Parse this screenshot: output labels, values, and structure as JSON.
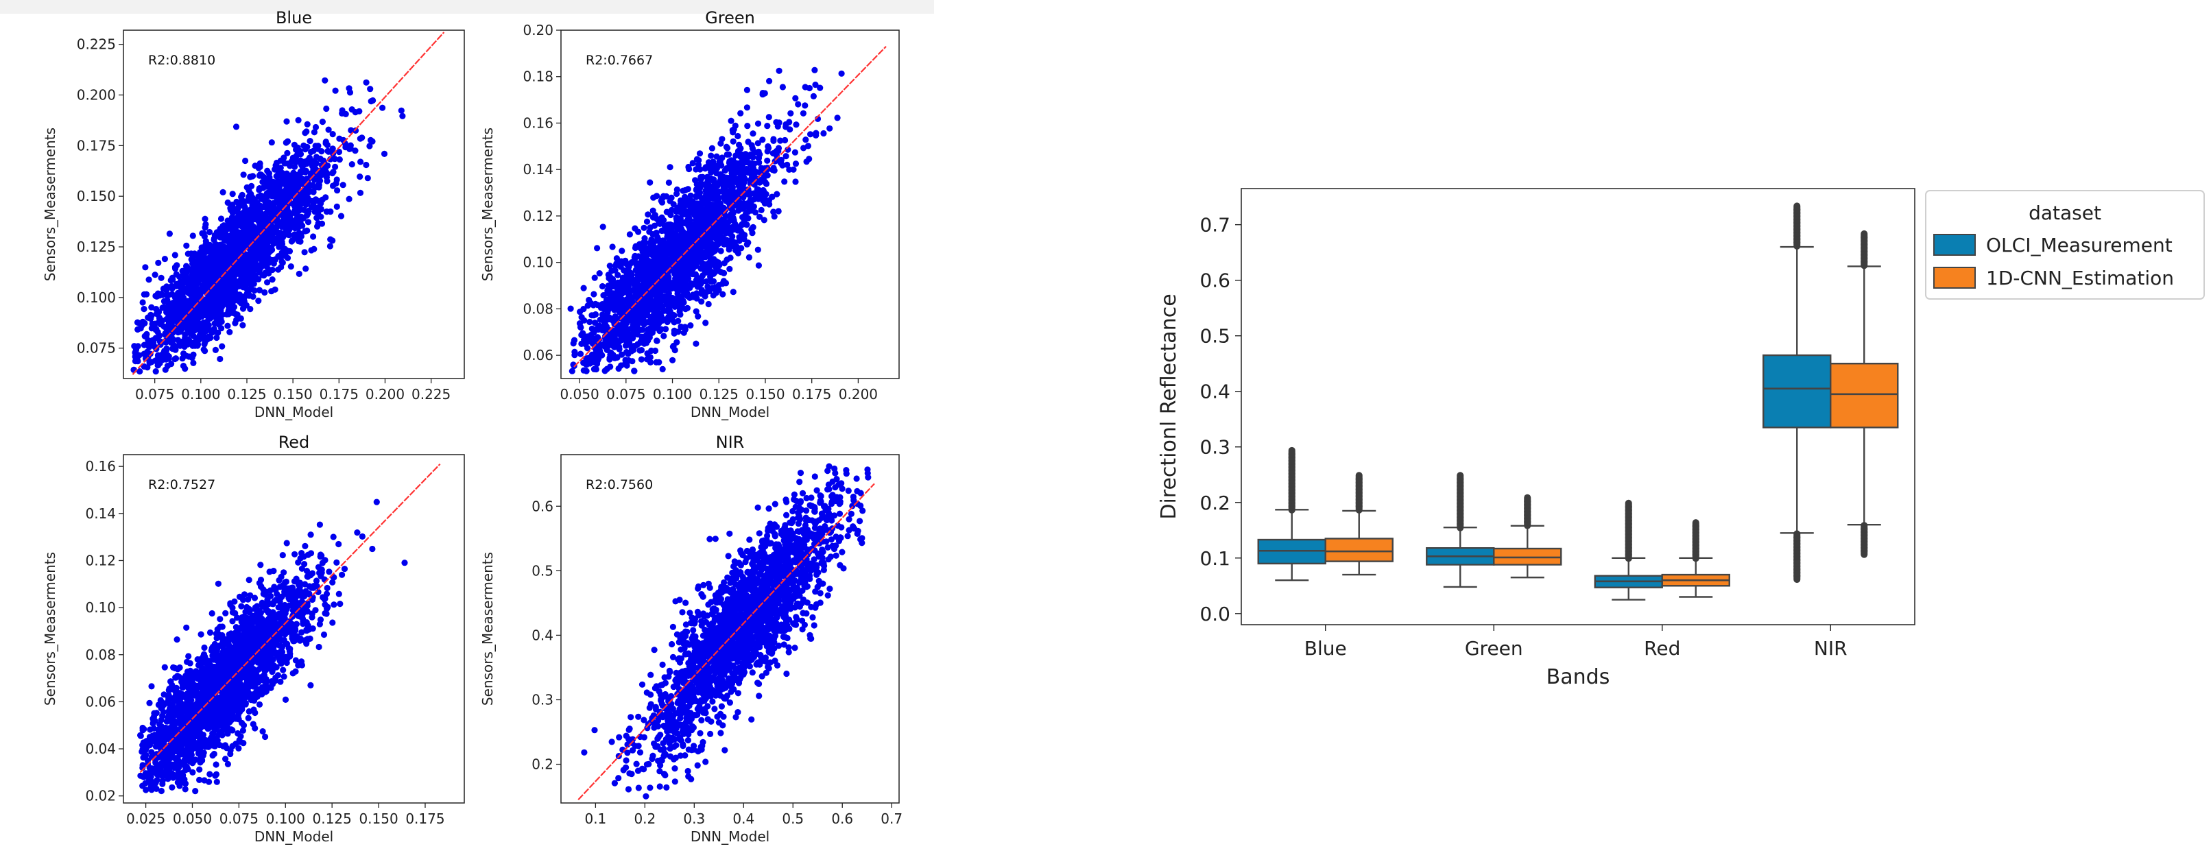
{
  "chart_data": [
    {
      "type": "scatter",
      "title": "Blue",
      "xlabel": "DNN_Model",
      "ylabel": "Sensors_Measerments",
      "annotation": "R2:0.8810",
      "xlim": [
        0.058,
        0.243
      ],
      "ylim": [
        0.06,
        0.232
      ],
      "xticks": [
        0.075,
        0.1,
        0.125,
        0.15,
        0.175,
        0.2,
        0.225
      ],
      "xtick_labels": [
        "0.075",
        "0.100",
        "0.125",
        "0.150",
        "0.175",
        "0.200",
        "0.225"
      ],
      "yticks": [
        0.075,
        0.1,
        0.125,
        0.15,
        0.175,
        0.2,
        0.225
      ],
      "ytick_labels": [
        "0.075",
        "0.100",
        "0.125",
        "0.150",
        "0.175",
        "0.200",
        "0.225"
      ],
      "fit_line": [
        [
          0.063,
          0.062
        ],
        [
          0.232,
          0.231
        ]
      ],
      "cloud": {
        "x_center": 0.118,
        "x_sd": 0.027,
        "slope": 0.92,
        "intercept": 0.01,
        "noise": 0.014,
        "x_min": 0.063,
        "x_max": 0.236,
        "y_min": 0.063,
        "y_max": 0.216,
        "n": 2200,
        "seed": 11
      },
      "point_color": "#0000ee",
      "line_color": "#ff3333"
    },
    {
      "type": "scatter",
      "title": "Green",
      "xlabel": "DNN_Model",
      "ylabel": "Sensors_Measerments",
      "annotation": "R2:0.7667",
      "xlim": [
        0.04,
        0.222
      ],
      "ylim": [
        0.05,
        0.2
      ],
      "xticks": [
        0.05,
        0.075,
        0.1,
        0.125,
        0.15,
        0.175,
        0.2
      ],
      "xtick_labels": [
        "0.050",
        "0.075",
        "0.100",
        "0.125",
        "0.150",
        "0.175",
        "0.200"
      ],
      "yticks": [
        0.06,
        0.08,
        0.1,
        0.12,
        0.14,
        0.16,
        0.18,
        0.2
      ],
      "ytick_labels": [
        "0.06",
        "0.08",
        "0.10",
        "0.12",
        "0.14",
        "0.16",
        "0.18",
        "0.20"
      ],
      "fit_line": [
        [
          0.047,
          0.055
        ],
        [
          0.215,
          0.193
        ]
      ],
      "cloud": {
        "x_center": 0.1,
        "x_sd": 0.028,
        "slope": 0.82,
        "intercept": 0.017,
        "noise": 0.014,
        "x_min": 0.045,
        "x_max": 0.215,
        "y_min": 0.053,
        "y_max": 0.184,
        "n": 2200,
        "seed": 23
      },
      "point_color": "#0000ee",
      "line_color": "#ff3333"
    },
    {
      "type": "scatter",
      "title": "Red",
      "xlabel": "DNN_Model",
      "ylabel": "Sensors_Measerments",
      "annotation": "R2:0.7527",
      "xlim": [
        0.013,
        0.196
      ],
      "ylim": [
        0.017,
        0.165
      ],
      "xticks": [
        0.025,
        0.05,
        0.075,
        0.1,
        0.125,
        0.15,
        0.175
      ],
      "xtick_labels": [
        "0.025",
        "0.050",
        "0.075",
        "0.100",
        "0.125",
        "0.150",
        "0.175"
      ],
      "yticks": [
        0.02,
        0.04,
        0.06,
        0.08,
        0.1,
        0.12,
        0.14,
        0.16
      ],
      "ytick_labels": [
        "0.02",
        "0.04",
        "0.06",
        "0.08",
        "0.10",
        "0.12",
        "0.14",
        "0.16"
      ],
      "fit_line": [
        [
          0.022,
          0.03
        ],
        [
          0.183,
          0.161
        ]
      ],
      "cloud": {
        "x_center": 0.065,
        "x_sd": 0.025,
        "slope": 0.81,
        "intercept": 0.012,
        "noise": 0.012,
        "x_min": 0.022,
        "x_max": 0.19,
        "y_min": 0.022,
        "y_max": 0.147,
        "n": 2200,
        "seed": 37
      },
      "point_color": "#0000ee",
      "line_color": "#ff3333"
    },
    {
      "type": "scatter",
      "title": "NIR",
      "xlabel": "DNN_Model",
      "ylabel": "Sensors_Measerments",
      "annotation": "R2:0.7560",
      "xlim": [
        0.03,
        0.715
      ],
      "ylim": [
        0.14,
        0.68
      ],
      "xticks": [
        0.1,
        0.2,
        0.3,
        0.4,
        0.5,
        0.6,
        0.7
      ],
      "xtick_labels": [
        "0.1",
        "0.2",
        "0.3",
        "0.4",
        "0.5",
        "0.6",
        "0.7"
      ],
      "yticks": [
        0.2,
        0.3,
        0.4,
        0.5,
        0.6
      ],
      "ytick_labels": [
        "0.2",
        "0.3",
        "0.4",
        "0.5",
        "0.6"
      ],
      "fit_line": [
        [
          0.065,
          0.145
        ],
        [
          0.665,
          0.635
        ]
      ],
      "cloud": {
        "x_center": 0.4,
        "x_sd": 0.1,
        "slope": 0.87,
        "intercept": 0.07,
        "noise": 0.05,
        "x_min": 0.065,
        "x_max": 0.66,
        "y_min": 0.15,
        "y_max": 0.665,
        "n": 2200,
        "seed": 51
      },
      "point_color": "#0000ee",
      "line_color": "#ff3333"
    },
    {
      "type": "box",
      "xlabel": "Bands",
      "ylabel": "Directionl Reflectance",
      "categories": [
        "Blue",
        "Green",
        "Red",
        "NIR"
      ],
      "ylim": [
        -0.02,
        0.765
      ],
      "yticks": [
        0.0,
        0.1,
        0.2,
        0.3,
        0.4,
        0.5,
        0.6,
        0.7
      ],
      "ytick_labels": [
        "0.0",
        "0.1",
        "0.2",
        "0.3",
        "0.4",
        "0.5",
        "0.6",
        "0.7"
      ],
      "legend_title": "dataset",
      "legend_position": "outside upper right",
      "series": [
        {
          "name": "OLCI_Measurement",
          "color": "#0a7fb2",
          "boxes": [
            {
              "whislo": 0.06,
              "q1": 0.09,
              "med": 0.113,
              "q3": 0.133,
              "whishi": 0.187,
              "fliers_from": 0.19,
              "fliers_to": 0.29
            },
            {
              "whislo": 0.048,
              "q1": 0.088,
              "med": 0.103,
              "q3": 0.118,
              "whishi": 0.155,
              "fliers_from": 0.158,
              "fliers_to": 0.245
            },
            {
              "whislo": 0.025,
              "q1": 0.047,
              "med": 0.058,
              "q3": 0.068,
              "whishi": 0.1,
              "fliers_from": 0.103,
              "fliers_to": 0.195
            },
            {
              "whislo": 0.145,
              "q1": 0.335,
              "med": 0.405,
              "q3": 0.465,
              "whishi": 0.66,
              "fliers_from": 0.665,
              "fliers_to": 0.73,
              "low_fliers_from": 0.065,
              "low_fliers_to": 0.14
            }
          ]
        },
        {
          "name": "1D-CNN_Estimation",
          "color": "#f6821f",
          "boxes": [
            {
              "whislo": 0.07,
              "q1": 0.094,
              "med": 0.112,
              "q3": 0.135,
              "whishi": 0.185,
              "fliers_from": 0.19,
              "fliers_to": 0.245
            },
            {
              "whislo": 0.065,
              "q1": 0.088,
              "med": 0.101,
              "q3": 0.117,
              "whishi": 0.158,
              "fliers_from": 0.162,
              "fliers_to": 0.205
            },
            {
              "whislo": 0.03,
              "q1": 0.05,
              "med": 0.06,
              "q3": 0.07,
              "whishi": 0.1,
              "fliers_from": 0.103,
              "fliers_to": 0.16
            },
            {
              "whislo": 0.16,
              "q1": 0.335,
              "med": 0.395,
              "q3": 0.45,
              "whishi": 0.625,
              "fliers_from": 0.63,
              "fliers_to": 0.68,
              "low_fliers_from": 0.11,
              "low_fliers_to": 0.155
            }
          ]
        }
      ]
    }
  ]
}
